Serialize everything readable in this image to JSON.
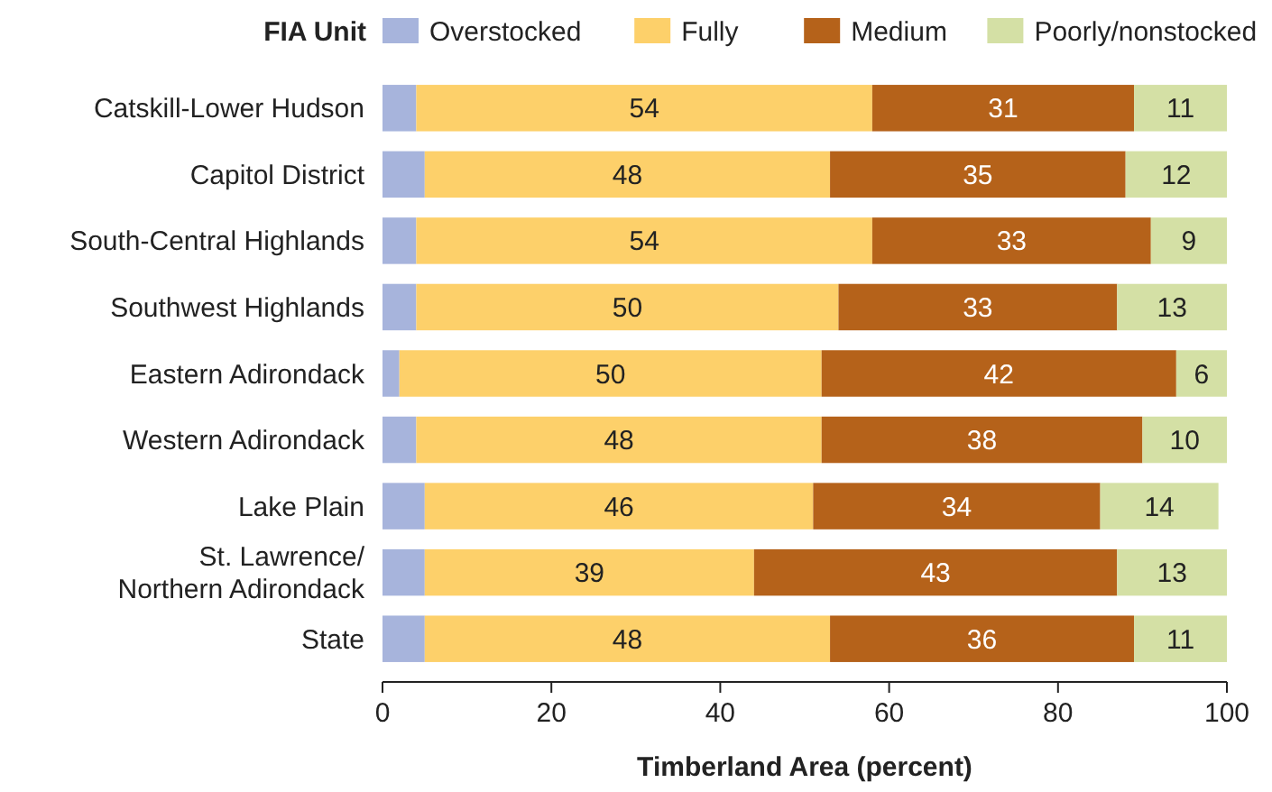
{
  "chart_data": {
    "type": "bar",
    "orientation": "horizontal",
    "stacked": true,
    "legend_title": "FIA Unit",
    "legend": "top",
    "xlabel": "Timberland Area (percent)",
    "categories": [
      "Catskill-Lower Hudson",
      "Capitol District",
      "South-Central Highlands",
      "Southwest Highlands",
      "Eastern Adirondack",
      "Western Adirondack",
      "Lake Plain",
      "St. Lawrence/\nNorthern Adirondack",
      "State"
    ],
    "xlim": [
      0,
      100
    ],
    "xticks": [
      0,
      20,
      40,
      60,
      80,
      100
    ],
    "grid": false,
    "series": [
      {
        "name": "Overstocked",
        "color": "#a7b4dc",
        "values": [
          4,
          5,
          4,
          4,
          2,
          4,
          5,
          5,
          5
        ]
      },
      {
        "name": "Fully",
        "color": "#fdd06a",
        "values": [
          54,
          48,
          54,
          50,
          50,
          48,
          46,
          39,
          48
        ],
        "value_labels": [
          "54",
          "48",
          "54",
          "50",
          "50",
          "48",
          "46",
          "39",
          "48"
        ]
      },
      {
        "name": "Medium",
        "color": "#b5621a",
        "values": [
          31,
          35,
          33,
          33,
          42,
          38,
          34,
          43,
          36
        ],
        "value_labels": [
          "31",
          "35",
          "33",
          "33",
          "42",
          "38",
          "34",
          "43",
          "36"
        ]
      },
      {
        "name": "Poorly/nonstocked",
        "color": "#d4e0a5",
        "values": [
          11,
          12,
          9,
          13,
          6,
          10,
          14,
          13,
          11
        ],
        "value_labels": [
          "11",
          "12",
          "9",
          "13",
          "6",
          "10",
          "14",
          "13",
          "11"
        ]
      }
    ]
  }
}
